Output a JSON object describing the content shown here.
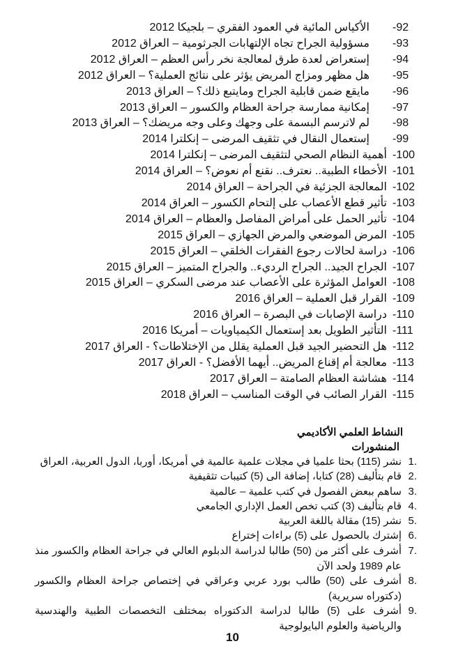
{
  "references": [
    {
      "num": "-92",
      "text": "الأكياس المائية في العمود الفقري – بلجيكا 2012"
    },
    {
      "num": "-93",
      "text": "مسؤولية الجراح تجاه الإلتهابات الجرثومية – العراق 2012"
    },
    {
      "num": "-94",
      "text": "إستعراض لعدة طرق لمعالجة نخر رأس العظم – العراق 2012"
    },
    {
      "num": "-95",
      "text": "هل مظهر ومزاج المريض يؤثر على نتائج العملية؟ – العراق 2012"
    },
    {
      "num": "-96",
      "text": "مايقع ضمن قابلية الجراح ومايتبع ذلك؟ – العراق 2013"
    },
    {
      "num": "-97",
      "text": "إمكانية ممارسة جراحة العظام والكسور – العراق 2013"
    },
    {
      "num": "-98",
      "text": "لم لاترسم البسمة على وجهك وعلى وجه مريضك؟ – العراق 2013"
    },
    {
      "num": "-99",
      "text": "إستعمال النقال في تثقيف المرضى – إنكلترا 2014"
    },
    {
      "num": "-100",
      "text": "أهمية النظام الصحي لتثقيف المرضى – إنكلترا 2014"
    },
    {
      "num": "-101",
      "text": "الأخطاء الطبية.. نعترف.. نقنع أم نعوض؟ – العراق 2014"
    },
    {
      "num": "-102",
      "text": "المعالجة الجزئية في الجراحة – العراق 2014"
    },
    {
      "num": "-103",
      "text": "تأثير قطع الأعصاب على إلتحام الكسور – العراق 2014"
    },
    {
      "num": "-104",
      "text": "تأثير الحمل على أمراض المفاصل والعظام – العراق 2014"
    },
    {
      "num": "-105",
      "text": "المرض الموضعي والمرض الجهازي – العراق 2015"
    },
    {
      "num": "-106",
      "text": "دراسة لحالات رجوع الفقرات الخلقي – العراق 2015"
    },
    {
      "num": "-107",
      "text": "الجراح الجيد.. الجراح الرديء.. والجراح المتميز – العراق 2015"
    },
    {
      "num": "-108",
      "text": "العوامل المؤثرة على الأعصاب عند مرضى السكري – العراق 2015"
    },
    {
      "num": "-109",
      "text": "القرار قبل العملية – العراق 2016"
    },
    {
      "num": "-110",
      "text": "دراسة الإصابات في البصرة – العراق 2016"
    },
    {
      "num": "-111",
      "text": "التأثير الطويل بعد إستعمال الكيمياويات – أمريكا 2016"
    },
    {
      "num": "-112",
      "text": "هل التحضير الجيد قبل العملية يقلل من الإختلاطات؟ - العراق 2017"
    },
    {
      "num": "-113",
      "text": "معالجة أم إقناع المريض.. أيهما الأفضل؟ - العراق 2017"
    },
    {
      "num": "-114",
      "text": "هشاشة العظام الصامتة – العراق 2017"
    },
    {
      "num": "-115",
      "text": "القرار الصائب في الوقت المناسب – العراق 2018"
    }
  ],
  "section": {
    "title": "النشاط العلمي الأكاديمي",
    "subtitle": "المنشورات",
    "items": [
      {
        "num": "1.",
        "text": "نشر (115) بحثا علميا في مجلات علمية عالمية في أمريكا، أوربا، الدول العربية، العراق"
      },
      {
        "num": "2.",
        "text": "قام بتأليف (28) كتابا، إضافة الى (5) كتيبات تثقيفية"
      },
      {
        "num": "3.",
        "text": "ساهم ببعض الفصول في كتب علمية – عالمية"
      },
      {
        "num": "4.",
        "text": "قام بتأليف (3) كتب تخص العمل الإداري الجامعي"
      },
      {
        "num": "5.",
        "text": "نشر (15) مقالة باللغة العربية"
      },
      {
        "num": "6.",
        "text": "إشترك بالحصول على (5) براءات إختراع"
      },
      {
        "num": "7.",
        "text": "أشرف على أكثر من (50) طالبا لدراسة الدبلوم العالي في جراحة العظام والكسور منذ عام 1989 ولحد الآن"
      },
      {
        "num": "8.",
        "text": "أشرف على (50) طالب بورد عربي وعراقي في إختصاص جراحة العظام والكسور (دكتوراه سريرية)"
      },
      {
        "num": "9.",
        "text": "أشرف على (5) طالبا لدراسة الدكتوراه بمختلف التخصصات الطبية والهندسية والرياضية والعلوم البايولوجية"
      }
    ]
  },
  "page_number": "10"
}
